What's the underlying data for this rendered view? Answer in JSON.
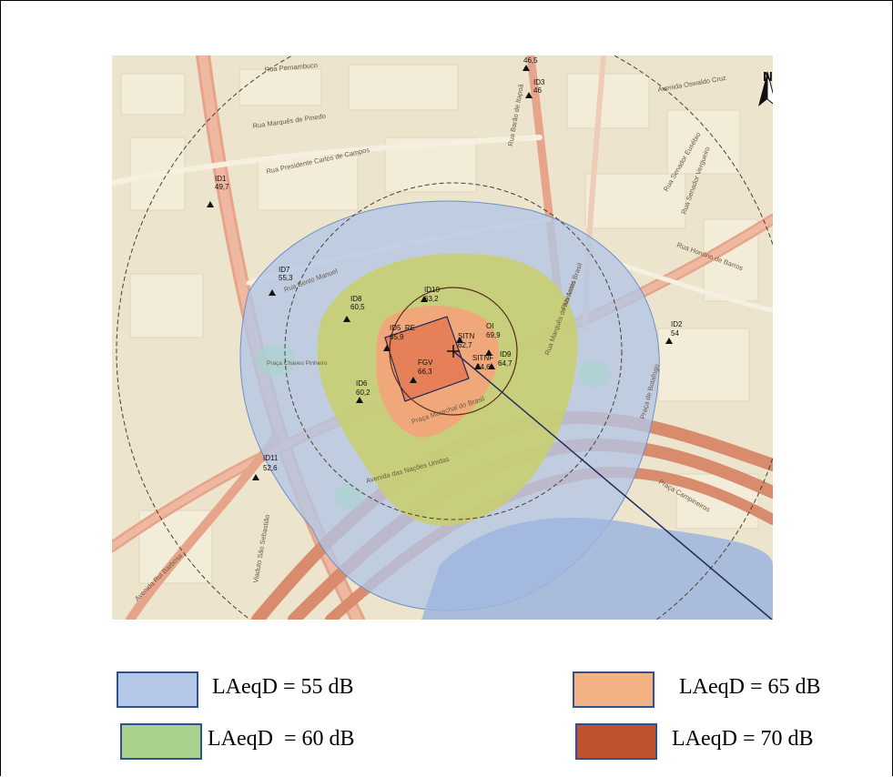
{
  "map": {
    "north_label": "N",
    "streets": [
      "Rua Pernambuco",
      "Rua Marquês de Pinedo",
      "Rua Presidente Carlos de Campos",
      "Rua Barão de Itapoã",
      "Rua Senador Vergueiro",
      "Avenida Oswaldo Cruz",
      "Rua Honório de Barros",
      "Rua Assis Brasil",
      "Rua Marquês de Abrantes",
      "Avenida Rui Barbosa",
      "Rua Bento Manuel",
      "Rua Senador Eusébio",
      "Praça Marechal do Brasil",
      "Avenida das Nações Unidas",
      "Praça Campineiros",
      "Viaduto São Sebastião",
      "Praça de Botafogo",
      "Praça Chaves Pinheiro"
    ],
    "sites": [
      {
        "id": "ID3",
        "value": "46",
        "label_id": "ID3",
        "label_val": "46"
      },
      {
        "id": "ID1",
        "value": "49,7",
        "label_id": "ID1",
        "label_val": "49,7"
      },
      {
        "id": "ID7",
        "value": "55,3",
        "label_id": "ID7",
        "label_val": "55,3"
      },
      {
        "id": "ID8",
        "value": "60,5",
        "label_id": "ID8",
        "label_val": "60,5"
      },
      {
        "id": "ID10",
        "value": "63,2",
        "label_id": "ID10",
        "label_val": "63,2"
      },
      {
        "id": "ID5_RE",
        "value": "65,9",
        "label_id": "ID5_RE",
        "label_val": "65,9"
      },
      {
        "id": "SITN",
        "value": "62,7",
        "label_id": "SITN",
        "label_val": "62,7"
      },
      {
        "id": "OI",
        "value": "69,9",
        "label_id": "OI",
        "label_val": "69,9"
      },
      {
        "id": "FGV",
        "value": "66,3",
        "label_id": "FGV",
        "label_val": "66,3"
      },
      {
        "id": "SITNF",
        "value": "64,6",
        "label_id": "SITNF",
        "label_val": "64,6"
      },
      {
        "id": "ID9",
        "value": "64,7",
        "label_id": "ID9",
        "label_val": "64,7"
      },
      {
        "id": "ID6",
        "value": "60,2",
        "label_id": "ID6",
        "label_val": "60,2"
      },
      {
        "id": "ID2",
        "value": "54",
        "label_id": "ID2",
        "label_val": "54"
      },
      {
        "id": "ID11",
        "value": "52,6",
        "label_id": "ID11",
        "label_val": "52,6"
      },
      {
        "id": "top",
        "value": "46,5",
        "label_id": "",
        "label_val": "46,5"
      }
    ]
  },
  "legend": [
    {
      "label": "LAeqD = 55 dB",
      "color": "#b4c7e7",
      "border": "#2f528f"
    },
    {
      "label": "LAeqD = 65 dB",
      "color": "#f4b183",
      "border": "#2f528f"
    },
    {
      "label": "LAeqD  = 60 dB",
      "color": "#a9d18e",
      "border": "#2f528f"
    },
    {
      "label": "LAeqD = 70 dB",
      "color": "#c0522f",
      "border": "#2f528f"
    }
  ]
}
